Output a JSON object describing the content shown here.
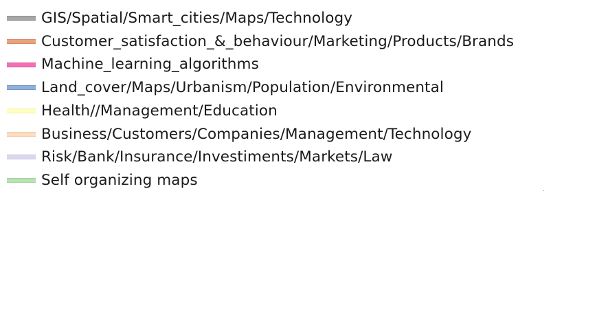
{
  "chart_data": {
    "type": "area",
    "legend_placement": "top-left",
    "series": [
      {
        "name": "GIS/Spatial/Smart_cities/Maps/Technology",
        "color": "#a6a6a6",
        "border": "#8c8c8c"
      },
      {
        "name": "Customer_satisfaction_&_behaviour/Marketing/Products/Brands",
        "color": "#e8a37e",
        "border": "#d88b63"
      },
      {
        "name": "Machine_learning_algorithms",
        "color": "#f070b4",
        "border": "#e0559f"
      },
      {
        "name": "Land_cover/Maps/Urbanism/Population/Environmental",
        "color": "#8fb0d8",
        "border": "#7598c4"
      },
      {
        "name": "Health//Management/Education",
        "color": "#ffffbe",
        "border": "#f0f0a0"
      },
      {
        "name": "Business/Customers/Companies/Management/Technology",
        "color": "#fddcc0",
        "border": "#f5c8a4"
      },
      {
        "name": "Risk/Bank/Insurance/Investiments/Markets/Law",
        "color": "#dcd6ee",
        "border": "#c8c0e0"
      },
      {
        "name": "Self organizing maps",
        "color": "#b9e2b4",
        "border": "#a0d09a"
      }
    ]
  }
}
